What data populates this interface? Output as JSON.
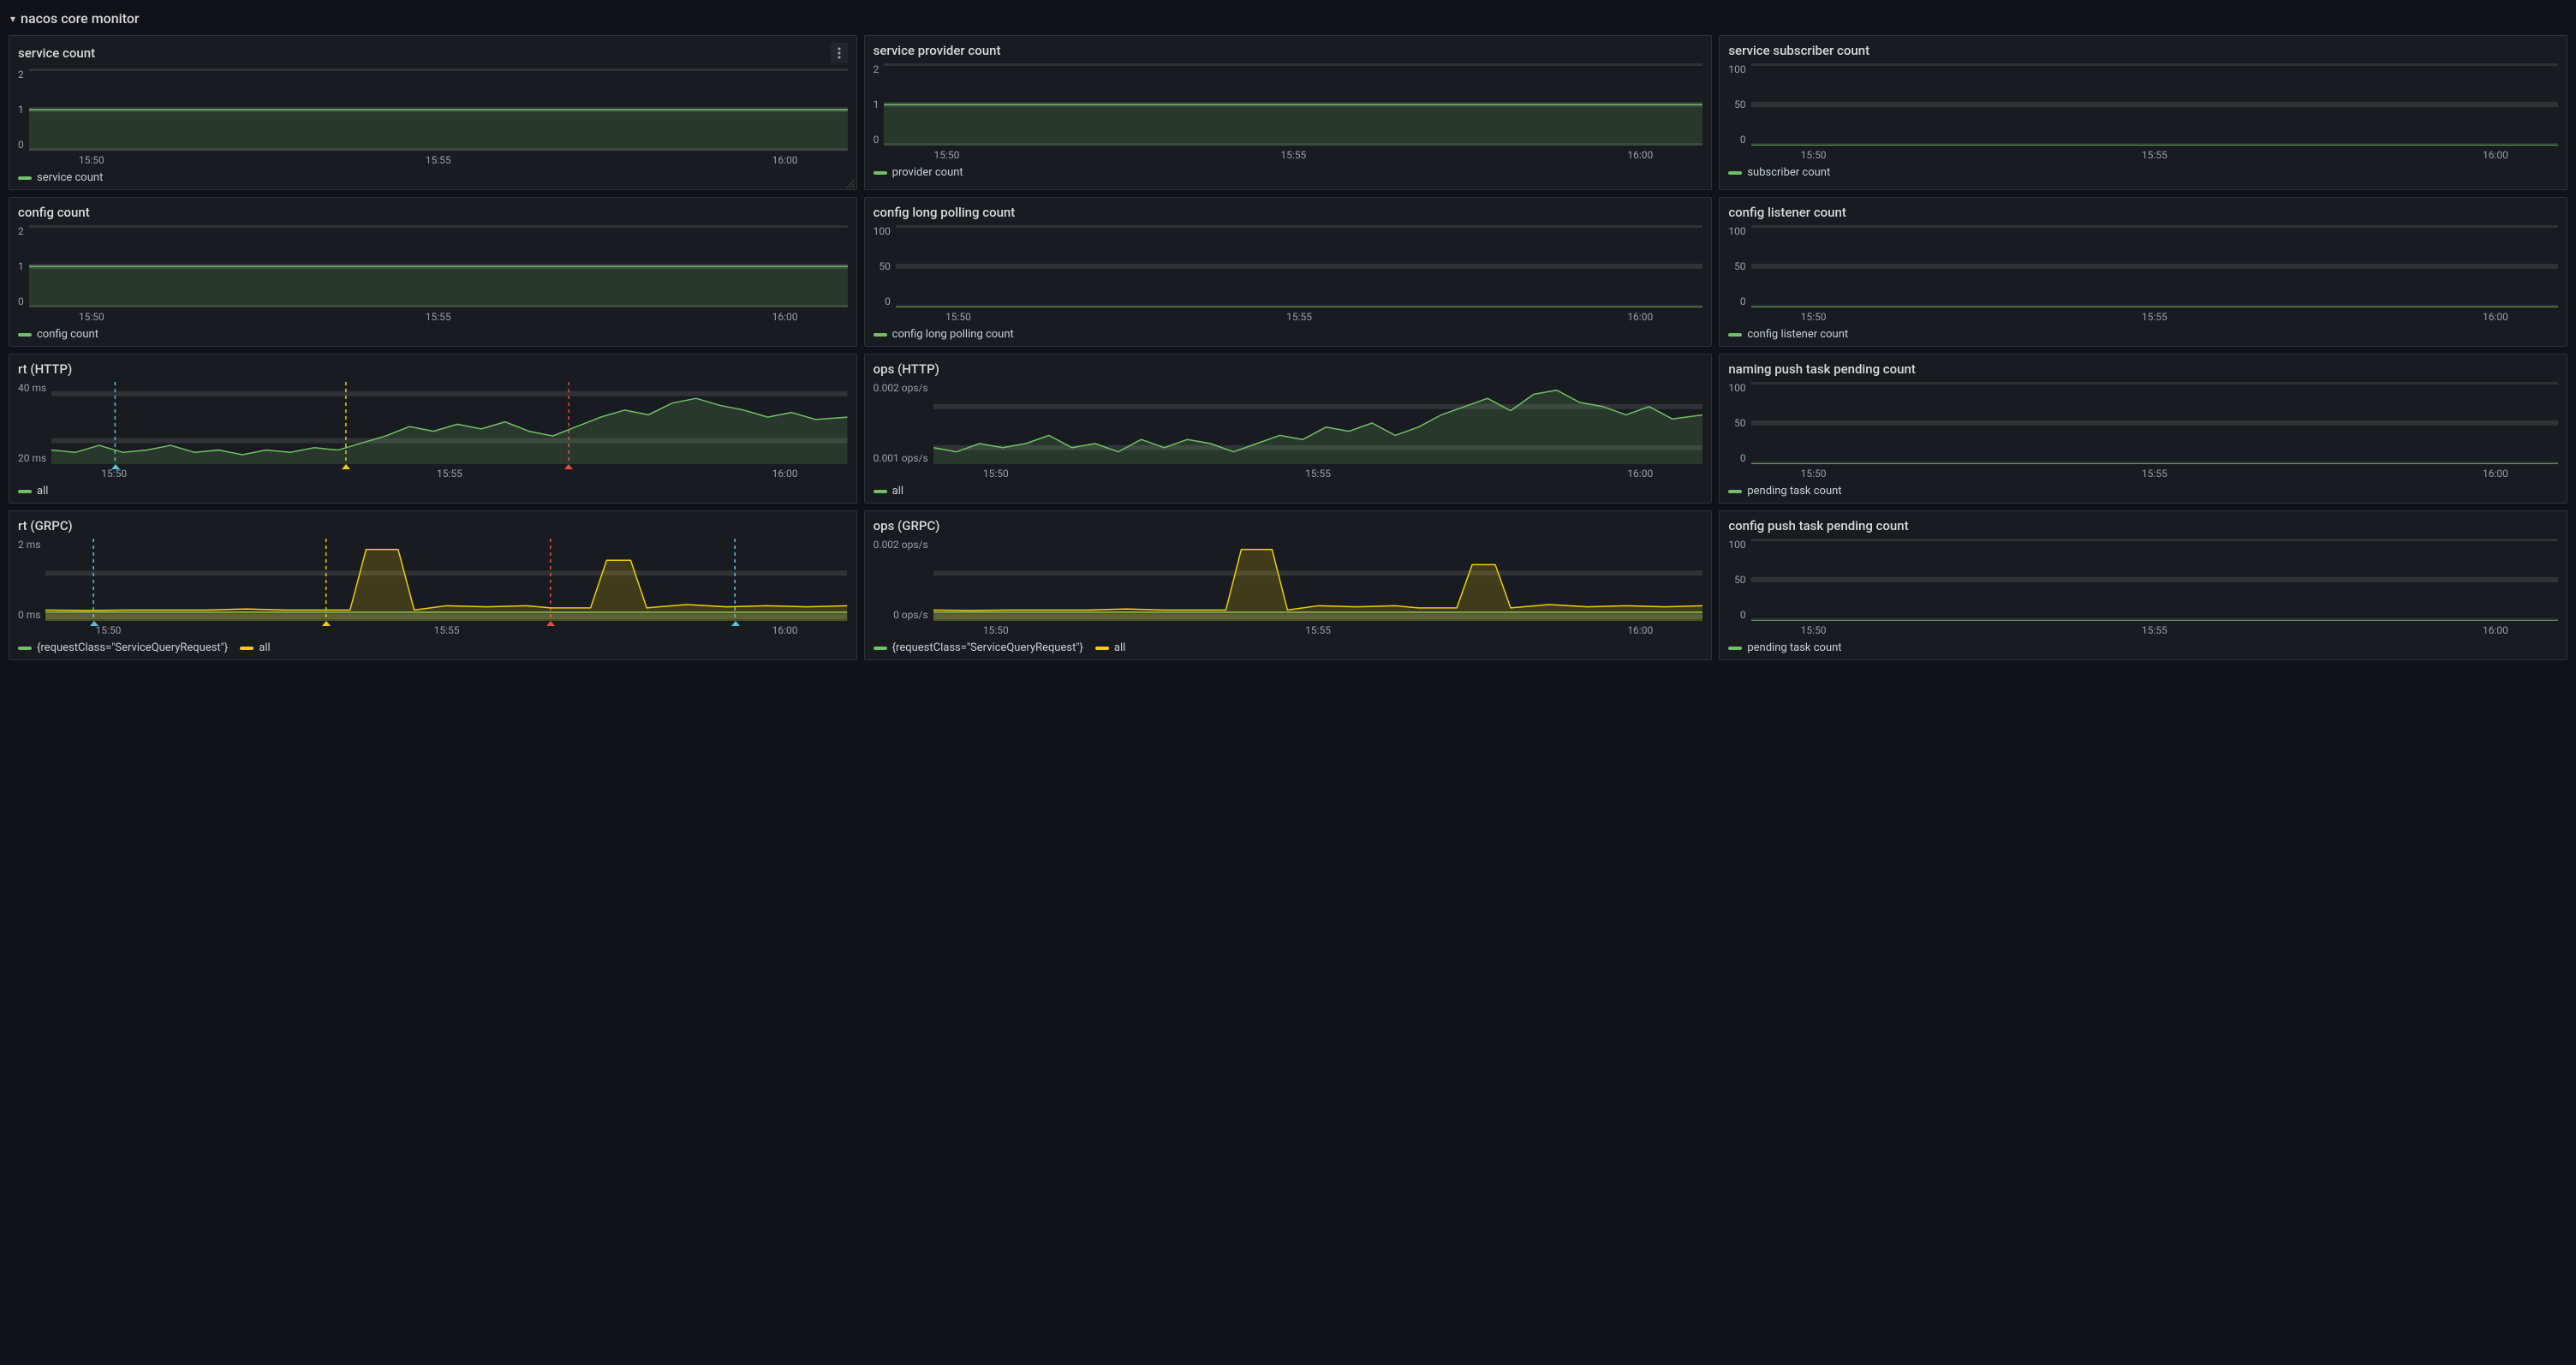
{
  "section": {
    "title": "nacos core monitor"
  },
  "colors": {
    "panel_bg": "#181b1f",
    "panel_border": "#2c3235",
    "text": "#d8d9da",
    "axis_text": "#9aa0a6",
    "grid": "#2f3336",
    "green": "#73bf69",
    "green_fill": "rgba(115,191,105,0.18)",
    "yellow": "#f2cc0c",
    "yellow_fill": "rgba(242,204,12,0.18)",
    "marker_blue": "#5bc0de",
    "marker_yellow": "#f2cc0c",
    "marker_red": "#e24d42"
  },
  "xaxis": {
    "labels": [
      "15:50",
      "15:55",
      "16:00"
    ]
  },
  "panels": [
    {
      "id": "service_count",
      "title": "service count",
      "show_menu": true,
      "show_resize": true,
      "ylabels": [
        "2",
        "1",
        "0"
      ],
      "ymin": 0,
      "ymax": 2,
      "gridlines_y": [
        0,
        1,
        2
      ],
      "series": [
        {
          "name": "service count",
          "color_key": "green",
          "fill_key": "green_fill",
          "points": [
            [
              0,
              1
            ],
            [
              100,
              1
            ]
          ]
        }
      ],
      "legend": [
        {
          "label": "service count",
          "color_key": "green"
        }
      ]
    },
    {
      "id": "service_provider_count",
      "title": "service provider count",
      "ylabels": [
        "2",
        "1",
        "0"
      ],
      "ymin": 0,
      "ymax": 2,
      "gridlines_y": [
        0,
        1,
        2
      ],
      "series": [
        {
          "name": "provider count",
          "color_key": "green",
          "fill_key": "green_fill",
          "points": [
            [
              0,
              1
            ],
            [
              100,
              1
            ]
          ]
        }
      ],
      "legend": [
        {
          "label": "provider count",
          "color_key": "green"
        }
      ]
    },
    {
      "id": "service_subscriber_count",
      "title": "service subscriber count",
      "ylabels": [
        "100",
        "50",
        "0"
      ],
      "ymin": 0,
      "ymax": 100,
      "gridlines_y": [
        0,
        50,
        100
      ],
      "series": [
        {
          "name": "subscriber count",
          "color_key": "green",
          "fill_key": "green_fill",
          "points": [
            [
              0,
              0
            ],
            [
              100,
              0
            ]
          ]
        }
      ],
      "legend": [
        {
          "label": "subscriber count",
          "color_key": "green"
        }
      ]
    },
    {
      "id": "config_count",
      "title": "config count",
      "ylabels": [
        "2",
        "1",
        "0"
      ],
      "ymin": 0,
      "ymax": 2,
      "gridlines_y": [
        0,
        1,
        2
      ],
      "series": [
        {
          "name": "config count",
          "color_key": "green",
          "fill_key": "green_fill",
          "points": [
            [
              0,
              1
            ],
            [
              100,
              1
            ]
          ]
        }
      ],
      "legend": [
        {
          "label": "config count",
          "color_key": "green"
        }
      ]
    },
    {
      "id": "config_long_polling",
      "title": "config long polling count",
      "ylabels": [
        "100",
        "50",
        "0"
      ],
      "ymin": 0,
      "ymax": 100,
      "gridlines_y": [
        0,
        50,
        100
      ],
      "series": [
        {
          "name": "config long polling count",
          "color_key": "green",
          "fill_key": "green_fill",
          "points": [
            [
              0,
              0
            ],
            [
              100,
              0
            ]
          ]
        }
      ],
      "legend": [
        {
          "label": "config long polling count",
          "color_key": "green"
        }
      ]
    },
    {
      "id": "config_listener",
      "title": "config listener count",
      "ylabels": [
        "100",
        "50",
        "0"
      ],
      "ymin": 0,
      "ymax": 100,
      "gridlines_y": [
        0,
        50,
        100
      ],
      "series": [
        {
          "name": "config listener count",
          "color_key": "green",
          "fill_key": "green_fill",
          "points": [
            [
              0,
              0
            ],
            [
              100,
              0
            ]
          ]
        }
      ],
      "legend": [
        {
          "label": "config listener count",
          "color_key": "green"
        }
      ]
    },
    {
      "id": "rt_http",
      "title": "rt (HTTP)",
      "ylabels": [
        "40 ms",
        "20 ms"
      ],
      "ymin": 10,
      "ymax": 45,
      "gridlines_y": [
        20,
        40
      ],
      "markers": [
        {
          "x": 8,
          "color_key": "marker_blue"
        },
        {
          "x": 37,
          "color_key": "marker_yellow"
        },
        {
          "x": 65,
          "color_key": "marker_red"
        }
      ],
      "series": [
        {
          "name": "all",
          "color_key": "green",
          "fill_key": "green_fill",
          "points": [
            [
              0,
              16
            ],
            [
              3,
              15
            ],
            [
              6,
              18
            ],
            [
              9,
              15
            ],
            [
              12,
              16
            ],
            [
              15,
              18
            ],
            [
              18,
              15
            ],
            [
              21,
              16
            ],
            [
              24,
              14
            ],
            [
              27,
              16
            ],
            [
              30,
              15
            ],
            [
              33,
              17
            ],
            [
              36,
              16
            ],
            [
              39,
              19
            ],
            [
              42,
              22
            ],
            [
              45,
              26
            ],
            [
              48,
              24
            ],
            [
              51,
              27
            ],
            [
              54,
              25
            ],
            [
              57,
              28
            ],
            [
              60,
              24
            ],
            [
              63,
              22
            ],
            [
              66,
              26
            ],
            [
              69,
              30
            ],
            [
              72,
              33
            ],
            [
              75,
              31
            ],
            [
              78,
              36
            ],
            [
              81,
              38
            ],
            [
              84,
              35
            ],
            [
              87,
              33
            ],
            [
              90,
              30
            ],
            [
              93,
              32
            ],
            [
              96,
              29
            ],
            [
              100,
              30
            ]
          ]
        }
      ],
      "legend": [
        {
          "label": "all",
          "color_key": "green"
        }
      ]
    },
    {
      "id": "ops_http",
      "title": "ops (HTTP)",
      "ylabels": [
        "0.002 ops/s",
        "0.001 ops/s"
      ],
      "ymin": 0.0006,
      "ymax": 0.0026,
      "gridlines_y": [
        0.001,
        0.002
      ],
      "series": [
        {
          "name": "all",
          "color_key": "green",
          "fill_key": "green_fill",
          "points": [
            [
              0,
              0.001
            ],
            [
              3,
              0.0009
            ],
            [
              6,
              0.0011
            ],
            [
              9,
              0.001
            ],
            [
              12,
              0.0011
            ],
            [
              15,
              0.0013
            ],
            [
              18,
              0.001
            ],
            [
              21,
              0.0011
            ],
            [
              24,
              0.0009
            ],
            [
              27,
              0.0012
            ],
            [
              30,
              0.001
            ],
            [
              33,
              0.0012
            ],
            [
              36,
              0.0011
            ],
            [
              39,
              0.0009
            ],
            [
              42,
              0.0011
            ],
            [
              45,
              0.0013
            ],
            [
              48,
              0.0012
            ],
            [
              51,
              0.0015
            ],
            [
              54,
              0.0014
            ],
            [
              57,
              0.0016
            ],
            [
              60,
              0.0013
            ],
            [
              63,
              0.0015
            ],
            [
              66,
              0.0018
            ],
            [
              69,
              0.002
            ],
            [
              72,
              0.0022
            ],
            [
              75,
              0.0019
            ],
            [
              78,
              0.0023
            ],
            [
              81,
              0.0024
            ],
            [
              84,
              0.0021
            ],
            [
              87,
              0.002
            ],
            [
              90,
              0.0018
            ],
            [
              93,
              0.002
            ],
            [
              96,
              0.0017
            ],
            [
              100,
              0.0018
            ]
          ]
        }
      ],
      "legend": [
        {
          "label": "all",
          "color_key": "green"
        }
      ]
    },
    {
      "id": "naming_push_pending",
      "title": "naming push task pending count",
      "ylabels": [
        "100",
        "50",
        "0"
      ],
      "ymin": 0,
      "ymax": 100,
      "gridlines_y": [
        0,
        50,
        100
      ],
      "series": [
        {
          "name": "pending task count",
          "color_key": "green",
          "fill_key": "green_fill",
          "points": [
            [
              0,
              0
            ],
            [
              100,
              0
            ]
          ]
        }
      ],
      "legend": [
        {
          "label": "pending task count",
          "color_key": "green"
        }
      ]
    },
    {
      "id": "rt_grpc",
      "title": "rt (GRPC)",
      "ylabels": [
        "2 ms",
        "0 ms"
      ],
      "ymin": -0.2,
      "ymax": 3.6,
      "gridlines_y": [
        0,
        2
      ],
      "markers": [
        {
          "x": 6,
          "color_key": "marker_blue"
        },
        {
          "x": 35,
          "color_key": "marker_yellow"
        },
        {
          "x": 63,
          "color_key": "marker_red"
        },
        {
          "x": 86,
          "color_key": "marker_blue"
        }
      ],
      "series": [
        {
          "name": "{requestClass=\"ServiceQueryRequest\"}",
          "color_key": "green",
          "fill_key": "green_fill",
          "points": [
            [
              0,
              0.2
            ],
            [
              100,
              0.2
            ]
          ]
        },
        {
          "name": "all",
          "color_key": "yellow",
          "fill_key": "yellow_fill",
          "points": [
            [
              0,
              0.3
            ],
            [
              5,
              0.28
            ],
            [
              10,
              0.3
            ],
            [
              15,
              0.3
            ],
            [
              20,
              0.3
            ],
            [
              25,
              0.35
            ],
            [
              30,
              0.3
            ],
            [
              35,
              0.3
            ],
            [
              38,
              0.3
            ],
            [
              40,
              3.1
            ],
            [
              44,
              3.1
            ],
            [
              46,
              0.3
            ],
            [
              50,
              0.5
            ],
            [
              55,
              0.45
            ],
            [
              60,
              0.5
            ],
            [
              63,
              0.4
            ],
            [
              66,
              0.4
            ],
            [
              68,
              0.4
            ],
            [
              70,
              2.6
            ],
            [
              73,
              2.6
            ],
            [
              75,
              0.4
            ],
            [
              80,
              0.55
            ],
            [
              85,
              0.45
            ],
            [
              90,
              0.5
            ],
            [
              95,
              0.45
            ],
            [
              100,
              0.5
            ]
          ]
        }
      ],
      "legend": [
        {
          "label": "{requestClass=\"ServiceQueryRequest\"}",
          "color_key": "green"
        },
        {
          "label": "all",
          "color_key": "yellow"
        }
      ]
    },
    {
      "id": "ops_grpc",
      "title": "ops (GRPC)",
      "ylabels": [
        "0.002 ops/s",
        "0 ops/s"
      ],
      "ymin": -0.0002,
      "ymax": 0.0036,
      "gridlines_y": [
        0,
        0.002
      ],
      "series": [
        {
          "name": "{requestClass=\"ServiceQueryRequest\"}",
          "color_key": "green",
          "fill_key": "green_fill",
          "points": [
            [
              0,
              0.0002
            ],
            [
              100,
              0.0002
            ]
          ]
        },
        {
          "name": "all",
          "color_key": "yellow",
          "fill_key": "yellow_fill",
          "points": [
            [
              0,
              0.0003
            ],
            [
              5,
              0.00028
            ],
            [
              10,
              0.0003
            ],
            [
              15,
              0.0003
            ],
            [
              20,
              0.0003
            ],
            [
              25,
              0.00035
            ],
            [
              30,
              0.0003
            ],
            [
              35,
              0.0003
            ],
            [
              38,
              0.0003
            ],
            [
              40,
              0.0031
            ],
            [
              44,
              0.0031
            ],
            [
              46,
              0.0003
            ],
            [
              50,
              0.0005
            ],
            [
              55,
              0.00045
            ],
            [
              60,
              0.0005
            ],
            [
              63,
              0.0004
            ],
            [
              66,
              0.0004
            ],
            [
              68,
              0.0004
            ],
            [
              70,
              0.0024
            ],
            [
              73,
              0.0024
            ],
            [
              75,
              0.0004
            ],
            [
              80,
              0.00055
            ],
            [
              85,
              0.00045
            ],
            [
              90,
              0.0005
            ],
            [
              95,
              0.00045
            ],
            [
              100,
              0.0005
            ]
          ]
        }
      ],
      "legend": [
        {
          "label": "{requestClass=\"ServiceQueryRequest\"}",
          "color_key": "green"
        },
        {
          "label": "all",
          "color_key": "yellow"
        }
      ]
    },
    {
      "id": "config_push_pending",
      "title": "config push task pending count",
      "ylabels": [
        "100",
        "50",
        "0"
      ],
      "ymin": 0,
      "ymax": 100,
      "gridlines_y": [
        0,
        50,
        100
      ],
      "series": [
        {
          "name": "pending task count",
          "color_key": "green",
          "fill_key": "green_fill",
          "points": [
            [
              0,
              0
            ],
            [
              100,
              0
            ]
          ]
        }
      ],
      "legend": [
        {
          "label": "pending task count",
          "color_key": "green"
        }
      ]
    }
  ]
}
